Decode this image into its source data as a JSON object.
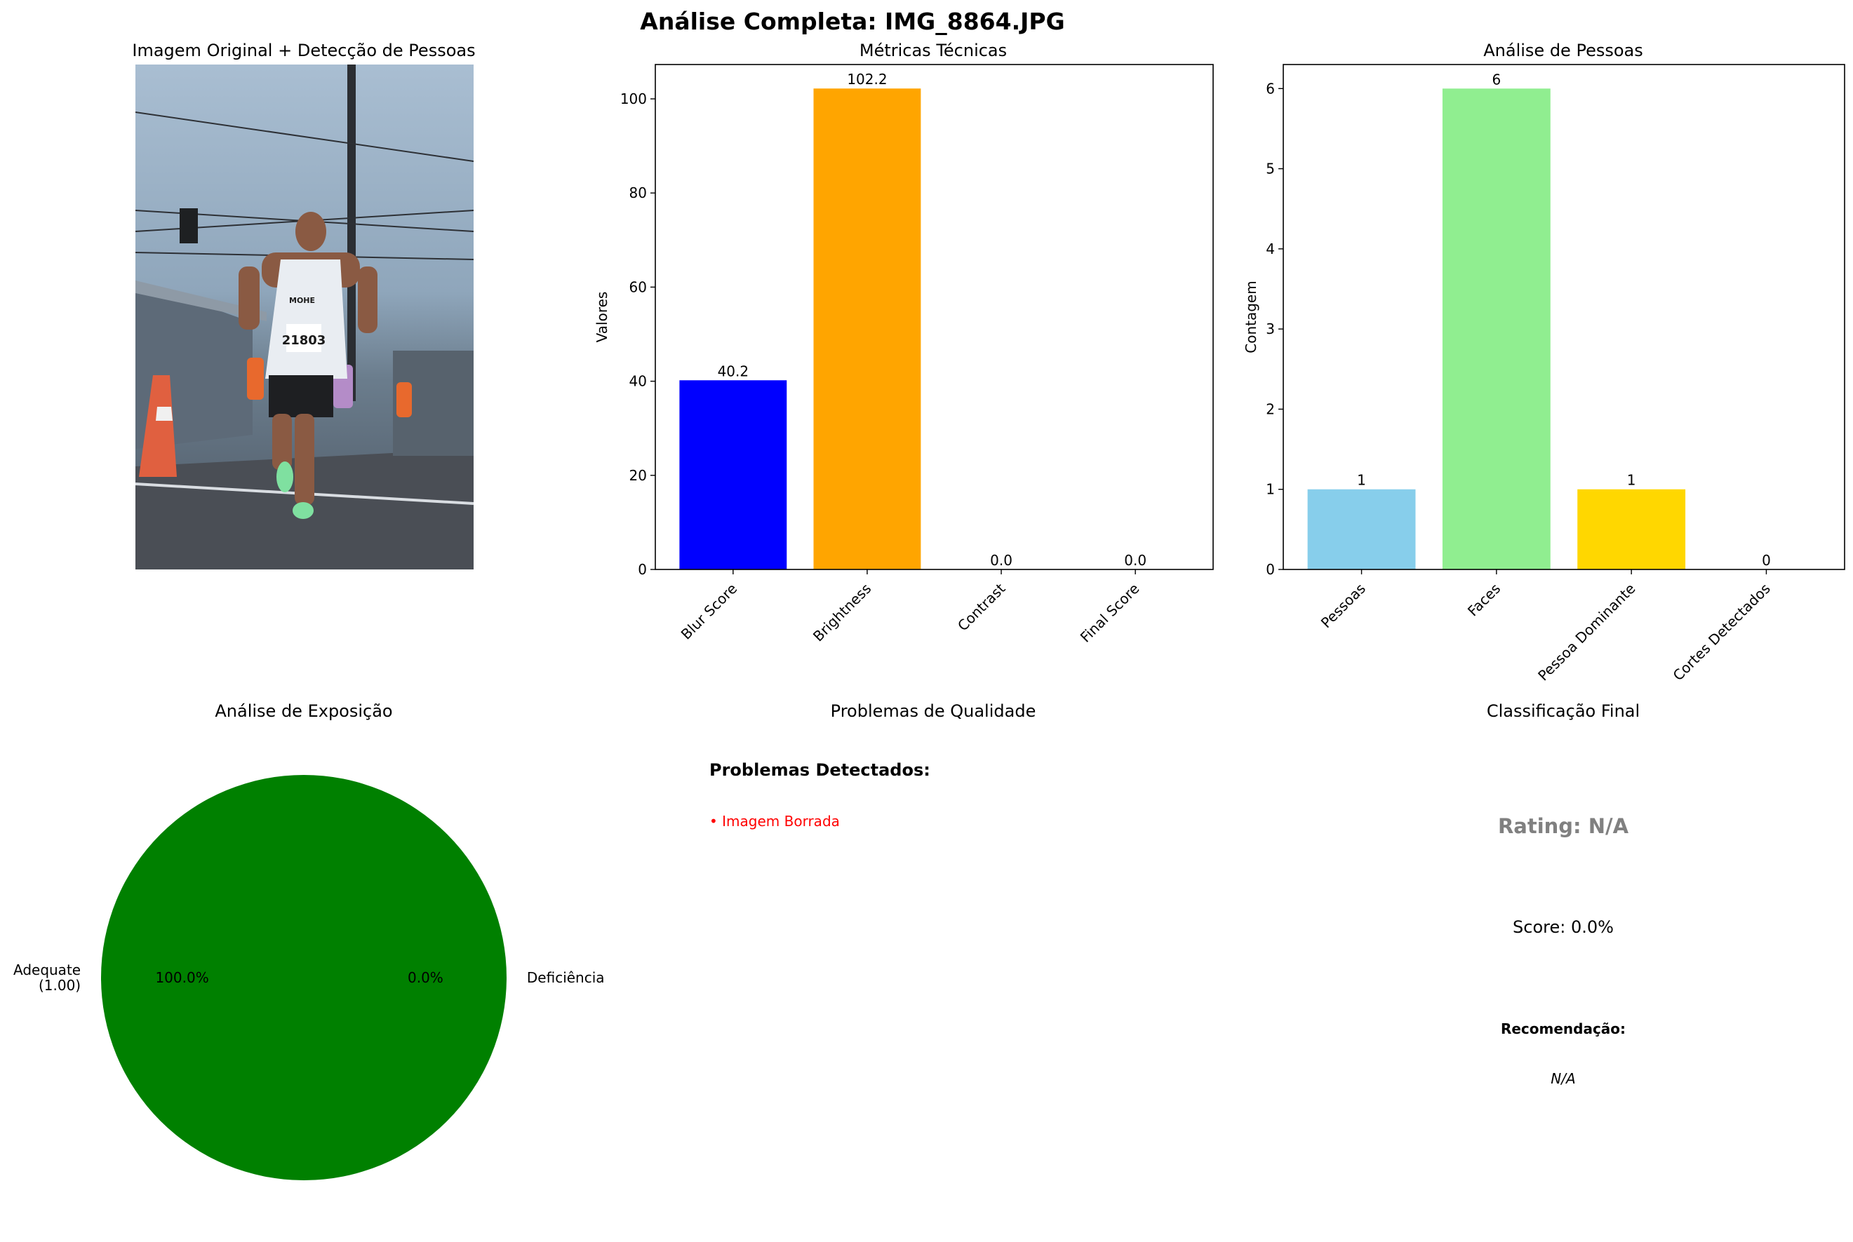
{
  "figure_title": "Análise Completa: IMG_8864.JPG",
  "photo_panel": {
    "title": "Imagem Original + Detecção de Pessoas",
    "bib_number": "21803",
    "shirt_print": "MOHE"
  },
  "colors": {
    "blur": "#0000ff",
    "brightness": "#ffa500",
    "pessoas": "#87ceeb",
    "faces": "#90ee90",
    "dominante": "#ffd700",
    "pie_adequate": "#008000",
    "problem_text": "#ff0000",
    "rating_text": "#808080"
  },
  "chart_data": [
    {
      "type": "bar",
      "title": "Métricas Técnicas",
      "xlabel": "",
      "ylabel": "Valores",
      "categories": [
        "Blur Score",
        "Brightness",
        "Contrast",
        "Final Score"
      ],
      "values": [
        40.2,
        102.2,
        0.0,
        0.0
      ],
      "value_labels": [
        "40.2",
        "102.2",
        "0.0",
        "0.0"
      ],
      "ylim": [
        0,
        107.3
      ],
      "yticks": [
        0,
        20,
        40,
        60,
        80,
        100
      ],
      "ytick_labels": [
        "0",
        "20",
        "40",
        "60",
        "80",
        "100"
      ],
      "colors": [
        "#0000ff",
        "#ffa500",
        "#808080",
        "#008000"
      ],
      "grid": false
    },
    {
      "type": "bar",
      "title": "Análise de Pessoas",
      "xlabel": "",
      "ylabel": "Contagem",
      "categories": [
        "Pessoas",
        "Faces",
        "Pessoa Dominante",
        "Cortes Detectados"
      ],
      "values": [
        1,
        6,
        1,
        0
      ],
      "value_labels": [
        "1",
        "6",
        "1",
        "0"
      ],
      "ylim": [
        0,
        6.3
      ],
      "yticks": [
        0,
        1,
        2,
        3,
        4,
        5,
        6
      ],
      "ytick_labels": [
        "0",
        "1",
        "2",
        "3",
        "4",
        "5",
        "6"
      ],
      "colors": [
        "#87ceeb",
        "#90ee90",
        "#ffd700",
        "#f08080"
      ],
      "grid": false
    },
    {
      "type": "pie",
      "title": "Análise de Exposição",
      "labels": [
        "Adequate\n(1.00)",
        "Deficiência"
      ],
      "values": [
        1.0,
        0.0
      ],
      "pct_labels": [
        "100.0%",
        "0.0%"
      ],
      "colors": [
        "#008000",
        "#ff0000"
      ]
    }
  ],
  "quality_panel": {
    "title": "Problemas de Qualidade",
    "heading": "Problemas Detectados:",
    "items": [
      "• Imagem Borrada"
    ]
  },
  "classification_panel": {
    "title": "Classificação Final",
    "rating": "Rating: N/A",
    "score": "Score: 0.0%",
    "recommendation_label": "Recomendação:",
    "recommendation_value": "N/A"
  }
}
